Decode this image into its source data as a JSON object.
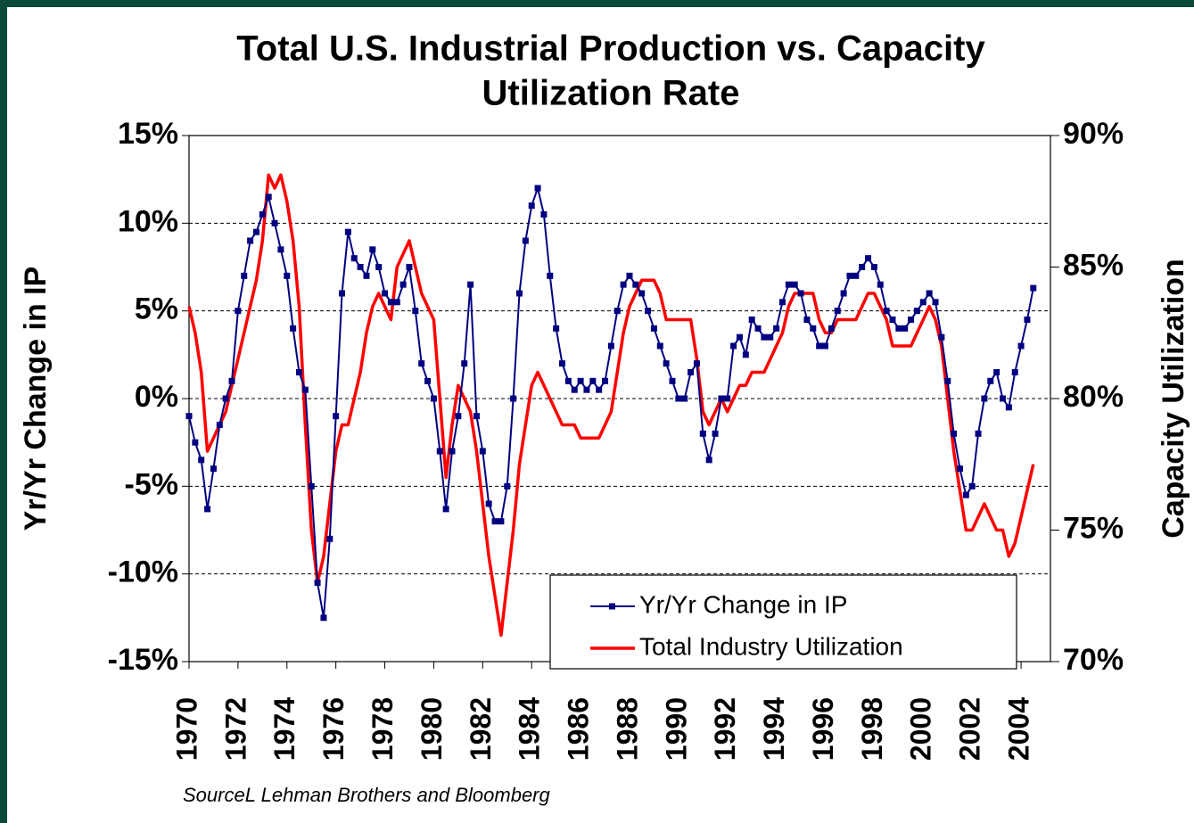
{
  "chart_data": {
    "type": "line",
    "title": [
      "Total U.S. Industrial Production vs. Capacity",
      "Utilization Rate"
    ],
    "ylabel": "Yr/Yr Change in IP",
    "y2label": "Capacity Utilization",
    "source": "SourceL Lehman Brothers and Bloomberg",
    "legend": "lower right",
    "grid": true,
    "xlim": [
      1970,
      2005.2
    ],
    "xticks": [
      1970,
      1972,
      1974,
      1976,
      1978,
      1980,
      1982,
      1984,
      1986,
      1988,
      1990,
      1992,
      1994,
      1996,
      1998,
      2000,
      2002,
      2004
    ],
    "ylim": [
      -15,
      15
    ],
    "yticks": [
      {
        "value": -15,
        "label": "-15%"
      },
      {
        "value": -10,
        "label": "-10%"
      },
      {
        "value": -5,
        "label": "-5%"
      },
      {
        "value": 0,
        "label": "0%"
      },
      {
        "value": 5,
        "label": "5%"
      },
      {
        "value": 10,
        "label": "10%"
      },
      {
        "value": 15,
        "label": "15%"
      }
    ],
    "y2lim": [
      70,
      90
    ],
    "y2ticks": [
      {
        "value": 70,
        "label": "70%"
      },
      {
        "value": 75,
        "label": "75%"
      },
      {
        "value": 80,
        "label": "80%"
      },
      {
        "value": 85,
        "label": "85%"
      },
      {
        "value": 90,
        "label": "90%"
      }
    ],
    "x": [
      1970,
      1970.25,
      1970.5,
      1970.75,
      1971,
      1971.25,
      1971.5,
      1971.75,
      1972,
      1972.25,
      1972.5,
      1972.75,
      1973,
      1973.25,
      1973.5,
      1973.75,
      1974,
      1974.25,
      1974.5,
      1974.75,
      1975,
      1975.25,
      1975.5,
      1975.75,
      1976,
      1976.25,
      1976.5,
      1976.75,
      1977,
      1977.25,
      1977.5,
      1977.75,
      1978,
      1978.25,
      1978.5,
      1978.75,
      1979,
      1979.25,
      1979.5,
      1979.75,
      1980,
      1980.25,
      1980.5,
      1980.75,
      1981,
      1981.25,
      1981.5,
      1981.75,
      1982,
      1982.25,
      1982.5,
      1982.75,
      1983,
      1983.25,
      1983.5,
      1983.75,
      1984,
      1984.25,
      1984.5,
      1984.75,
      1985,
      1985.25,
      1985.5,
      1985.75,
      1986,
      1986.25,
      1986.5,
      1986.75,
      1987,
      1987.25,
      1987.5,
      1987.75,
      1988,
      1988.25,
      1988.5,
      1988.75,
      1989,
      1989.25,
      1989.5,
      1989.75,
      1990,
      1990.25,
      1990.5,
      1990.75,
      1991,
      1991.25,
      1991.5,
      1991.75,
      1992,
      1992.25,
      1992.5,
      1992.75,
      1993,
      1993.25,
      1993.5,
      1993.75,
      1994,
      1994.25,
      1994.5,
      1994.75,
      1995,
      1995.25,
      1995.5,
      1995.75,
      1996,
      1996.25,
      1996.5,
      1996.75,
      1997,
      1997.25,
      1997.5,
      1997.75,
      1998,
      1998.25,
      1998.5,
      1998.75,
      1999,
      1999.25,
      1999.5,
      1999.75,
      2000,
      2000.25,
      2000.5,
      2000.75,
      2001,
      2001.25,
      2001.5,
      2001.75,
      2002,
      2002.25,
      2002.5,
      2002.75,
      2003,
      2003.25,
      2003.5,
      2003.75,
      2004,
      2004.25,
      2004.5
    ],
    "series": [
      {
        "name": "Yr/Yr Change in IP",
        "color": "#000080",
        "marker": "square",
        "values": [
          -1,
          -2.5,
          -3.5,
          -6.3,
          -4,
          -1.5,
          0,
          1,
          5,
          7,
          9,
          9.5,
          10.5,
          11.5,
          10,
          8.5,
          7,
          4,
          1.5,
          0.5,
          -5,
          -10.5,
          -12.5,
          -8,
          -1,
          6,
          9.5,
          8,
          7.5,
          7,
          8.5,
          7.5,
          6,
          5.5,
          5.5,
          6.5,
          7.5,
          5,
          2,
          1,
          0,
          -3,
          -6.3,
          -3,
          -1,
          2,
          6.5,
          -1,
          -3,
          -6,
          -7,
          -7,
          -5,
          0,
          6,
          9,
          11,
          12,
          10.5,
          7,
          4,
          2,
          1,
          0.5,
          1,
          0.5,
          1,
          0.5,
          1,
          3,
          5,
          6.5,
          7,
          6.5,
          6,
          5,
          4,
          3,
          2,
          1,
          0,
          0,
          1.5,
          2,
          -2,
          -3.5,
          -2,
          0,
          0,
          3,
          3.5,
          2.5,
          4.5,
          4,
          3.5,
          3.5,
          4,
          5.5,
          6.5,
          6.5,
          6,
          4.5,
          4,
          3,
          3,
          4,
          5,
          6,
          7,
          7,
          7.5,
          8,
          7.5,
          6.5,
          5,
          4.5,
          4,
          4,
          4.5,
          5,
          5.5,
          6,
          5.5,
          3.5,
          1,
          -2,
          -4,
          -5.5,
          -5,
          -2,
          0,
          1,
          1.5,
          0,
          -0.5,
          1.5,
          3,
          4.5,
          6.3
        ]
      },
      {
        "name": "Total Industry Utilization",
        "color": "#ff0000",
        "axis": "y2",
        "values": [
          83.5,
          82.5,
          81,
          78,
          78.5,
          79,
          79.5,
          80.5,
          81.5,
          82.5,
          83.5,
          84.5,
          86,
          88.5,
          88,
          88.5,
          87.5,
          86,
          83.5,
          79,
          75,
          73,
          74,
          76,
          78,
          79,
          79,
          80,
          81,
          82.5,
          83.5,
          84,
          83.5,
          83,
          85,
          85.5,
          86,
          85,
          84,
          83.5,
          83,
          80,
          77,
          79,
          80.5,
          80,
          79.5,
          78,
          76,
          74,
          72.5,
          71,
          73,
          75,
          77.5,
          79,
          80.5,
          81,
          80.5,
          80,
          79.5,
          79,
          79,
          79,
          78.5,
          78.5,
          78.5,
          78.5,
          79,
          79.5,
          81,
          82.5,
          83.5,
          84,
          84.5,
          84.5,
          84.5,
          84,
          83,
          83,
          83,
          83,
          83,
          81.5,
          79.5,
          79,
          79.5,
          80,
          79.5,
          80,
          80.5,
          80.5,
          81,
          81,
          81,
          81.5,
          82,
          82.5,
          83.5,
          84,
          84,
          84,
          84,
          83,
          82.5,
          82.5,
          83,
          83,
          83,
          83,
          83.5,
          84,
          84,
          83.5,
          83,
          82,
          82,
          82,
          82,
          82.5,
          83,
          83.5,
          83,
          82,
          80,
          78,
          76.5,
          75,
          75,
          75.5,
          76,
          75.5,
          75,
          75,
          74,
          74.5,
          75.5,
          76.5,
          77.5
        ]
      }
    ]
  }
}
